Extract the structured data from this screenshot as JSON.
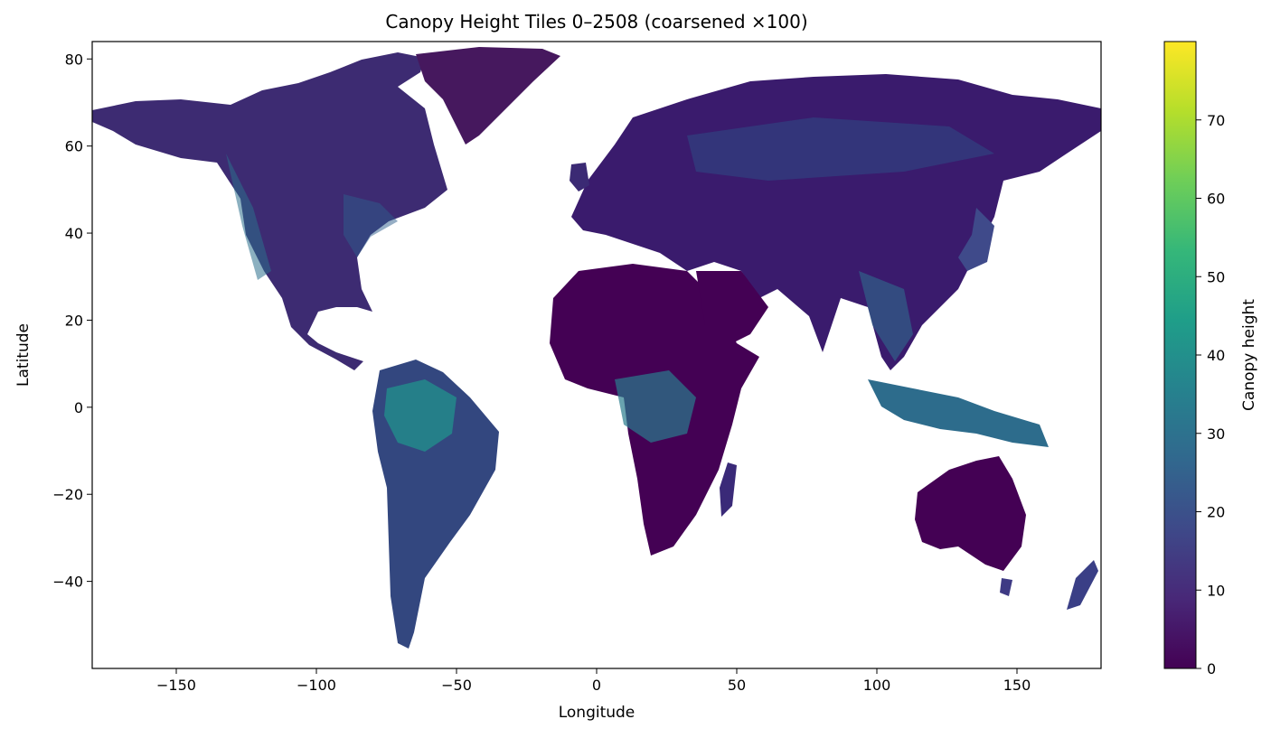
{
  "title": "Canopy Height Tiles 0–2508 (coarsened ×100)",
  "axes": {
    "xlabel": "Longitude",
    "ylabel": "Latitude",
    "xlim": [
      -180,
      180
    ],
    "ylim": [
      -60,
      84
    ],
    "xticks": [
      {
        "value": -150,
        "label": "−150"
      },
      {
        "value": -100,
        "label": "−100"
      },
      {
        "value": -50,
        "label": "−50"
      },
      {
        "value": 0,
        "label": "0"
      },
      {
        "value": 50,
        "label": "50"
      },
      {
        "value": 100,
        "label": "100"
      },
      {
        "value": 150,
        "label": "150"
      }
    ],
    "yticks": [
      {
        "value": -40,
        "label": "−40"
      },
      {
        "value": -20,
        "label": "−20"
      },
      {
        "value": 0,
        "label": "0"
      },
      {
        "value": 20,
        "label": "20"
      },
      {
        "value": 40,
        "label": "40"
      },
      {
        "value": 60,
        "label": "60"
      },
      {
        "value": 80,
        "label": "80"
      }
    ]
  },
  "colorbar": {
    "label": "Canopy height",
    "colormap": "viridis",
    "range": [
      0,
      80
    ],
    "ticks": [
      {
        "value": 0,
        "label": "0"
      },
      {
        "value": 10,
        "label": "10"
      },
      {
        "value": 20,
        "label": "20"
      },
      {
        "value": 30,
        "label": "30"
      },
      {
        "value": 40,
        "label": "40"
      },
      {
        "value": 50,
        "label": "50"
      },
      {
        "value": 60,
        "label": "60"
      },
      {
        "value": 70,
        "label": "70"
      }
    ],
    "stops": [
      "#440154",
      "#482878",
      "#3e4989",
      "#31688e",
      "#26828e",
      "#1f9e89",
      "#35b779",
      "#6ece58",
      "#b5de2b",
      "#fde725"
    ]
  },
  "map_colors": {
    "low": "#440154",
    "mid": "#3b528b",
    "high": "#21918c"
  }
}
